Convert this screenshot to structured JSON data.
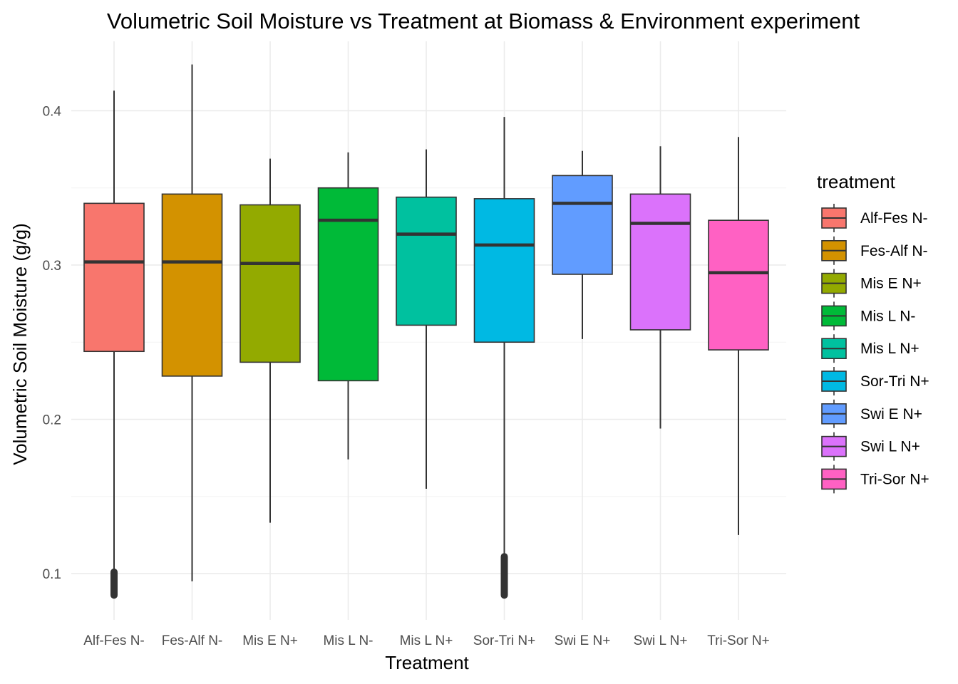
{
  "chart_data": {
    "type": "box",
    "title": "Volumetric Soil Moisture vs Treatment at Biomass & Environment experiment",
    "xlabel": "Treatment",
    "ylabel": "Volumetric Soil Moisture (g/g)",
    "ylim": [
      0.07,
      0.445
    ],
    "yticks": [
      0.1,
      0.2,
      0.3,
      0.4
    ],
    "ytick_labels": [
      "0.1",
      "0.2",
      "0.3",
      "0.4"
    ],
    "grid": true,
    "legend": {
      "title": "treatment",
      "position": "right"
    },
    "categories": [
      "Alf-Fes N-",
      "Fes-Alf N-",
      "Mis E N+",
      "Mis L N-",
      "Mis L N+",
      "Sor-Tri N+",
      "Swi E N+",
      "Swi L N+",
      "Tri-Sor N+"
    ],
    "series": [
      {
        "name": "Alf-Fes N-",
        "color": "#F8766D",
        "whisker_low": 0.101,
        "q1": 0.244,
        "median": 0.302,
        "q3": 0.34,
        "whisker_high": 0.413,
        "outliers_range": [
          0.086,
          0.101
        ]
      },
      {
        "name": "Fes-Alf N-",
        "color": "#D39200",
        "whisker_low": 0.095,
        "q1": 0.228,
        "median": 0.302,
        "q3": 0.346,
        "whisker_high": 0.43,
        "outliers_range": []
      },
      {
        "name": "Mis E N+",
        "color": "#93AA00",
        "whisker_low": 0.133,
        "q1": 0.237,
        "median": 0.301,
        "q3": 0.339,
        "whisker_high": 0.369,
        "outliers_range": []
      },
      {
        "name": "Mis L N-",
        "color": "#00BA38",
        "whisker_low": 0.174,
        "q1": 0.225,
        "median": 0.329,
        "q3": 0.35,
        "whisker_high": 0.373,
        "outliers_range": []
      },
      {
        "name": "Mis L N+",
        "color": "#00C19F",
        "whisker_low": 0.155,
        "q1": 0.261,
        "median": 0.32,
        "q3": 0.344,
        "whisker_high": 0.375,
        "outliers_range": []
      },
      {
        "name": "Sor-Tri N+",
        "color": "#00B9E3",
        "whisker_low": 0.111,
        "q1": 0.25,
        "median": 0.313,
        "q3": 0.343,
        "whisker_high": 0.396,
        "outliers_range": [
          0.086,
          0.111
        ]
      },
      {
        "name": "Swi E N+",
        "color": "#619CFF",
        "whisker_low": 0.252,
        "q1": 0.294,
        "median": 0.34,
        "q3": 0.358,
        "whisker_high": 0.374,
        "outliers_range": []
      },
      {
        "name": "Swi L N+",
        "color": "#DB72FB",
        "whisker_low": 0.194,
        "q1": 0.258,
        "median": 0.327,
        "q3": 0.346,
        "whisker_high": 0.377,
        "outliers_range": []
      },
      {
        "name": "Tri-Sor N+",
        "color": "#FF61C3",
        "whisker_low": 0.125,
        "q1": 0.245,
        "median": 0.295,
        "q3": 0.329,
        "whisker_high": 0.383,
        "outliers_range": []
      }
    ]
  }
}
